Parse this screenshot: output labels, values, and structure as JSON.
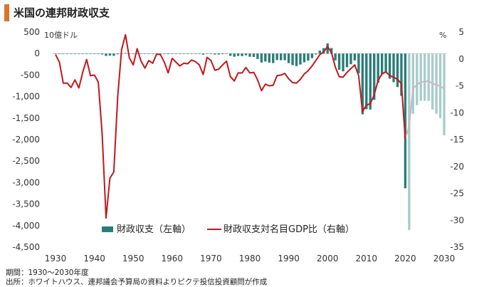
{
  "title": "米国の連邦財政収支",
  "footnote_period": "期間：1930～2030年度",
  "footnote_source": "出所：ホワイトハウス、連邦議会予算局の資料よりピクテ投信投資顧問が作成",
  "chart_data": {
    "type": "bar+line",
    "left_axis": {
      "unit": "10億ドル",
      "ylim": [
        -4500,
        500
      ],
      "ticks": [
        "500",
        "0",
        "-500",
        "-1,000",
        "-1,500",
        "-2,000",
        "-2,500",
        "-3,000",
        "-3,500",
        "-4,000",
        "-4,500"
      ]
    },
    "right_axis": {
      "unit": "%",
      "ylim": [
        -35,
        5
      ],
      "ticks": [
        "5",
        "0",
        "-5",
        "-10",
        "-15",
        "-20",
        "-25",
        "-30",
        "-35"
      ]
    },
    "x_axis": {
      "ticks": [
        "1930",
        "1940",
        "1950",
        "1960",
        "1970",
        "1980",
        "1990",
        "2000",
        "2010",
        "2020",
        "2030"
      ]
    },
    "legend": [
      {
        "name": "財政収支（左軸）",
        "color": "#2a7d78"
      },
      {
        "name": "財政収支対名目GDP比（右軸）",
        "color": "#c0181d"
      }
    ],
    "colors": {
      "actual": "#2a7d78",
      "forecast": "#a9cccb",
      "ratio": "#c0181d",
      "ratio_forecast": "#c8b8c0"
    },
    "balance": {
      "x": [
        1930,
        1931,
        1932,
        1933,
        1934,
        1935,
        1936,
        1937,
        1938,
        1939,
        1940,
        1941,
        1942,
        1943,
        1944,
        1945,
        1946,
        1947,
        1948,
        1949,
        1950,
        1951,
        1952,
        1953,
        1954,
        1955,
        1956,
        1957,
        1958,
        1959,
        1960,
        1961,
        1962,
        1963,
        1964,
        1965,
        1966,
        1967,
        1968,
        1969,
        1970,
        1971,
        1972,
        1973,
        1974,
        1975,
        1976,
        1977,
        1978,
        1979,
        1980,
        1981,
        1982,
        1983,
        1984,
        1985,
        1986,
        1987,
        1988,
        1989,
        1990,
        1991,
        1992,
        1993,
        1994,
        1995,
        1996,
        1997,
        1998,
        1999,
        2000,
        2001,
        2002,
        2003,
        2004,
        2005,
        2006,
        2007,
        2008,
        2009,
        2010,
        2011,
        2012,
        2013,
        2014,
        2015,
        2016,
        2017,
        2018,
        2019,
        2020,
        2021,
        2022,
        2023,
        2024,
        2025,
        2026,
        2027,
        2028,
        2029,
        2030
      ],
      "values": [
        1,
        -3,
        -3,
        -3,
        -4,
        -3,
        -4,
        -3,
        0,
        -3,
        -3,
        -5,
        -21,
        -55,
        -48,
        -53,
        -16,
        4,
        12,
        1,
        -3,
        6,
        -2,
        -7,
        -1,
        -3,
        4,
        3,
        -3,
        -13,
        0,
        -3,
        -7,
        -5,
        -6,
        -1,
        -4,
        -9,
        -25,
        3,
        -3,
        -23,
        -23,
        -15,
        -6,
        -53,
        -74,
        -54,
        -59,
        -41,
        -74,
        -79,
        -128,
        -208,
        -185,
        -212,
        -221,
        -150,
        -155,
        -153,
        -221,
        -269,
        -290,
        -255,
        -203,
        -164,
        -107,
        -22,
        69,
        126,
        236,
        128,
        -158,
        -378,
        -413,
        -318,
        -248,
        -161,
        -459,
        -1413,
        -1294,
        -1300,
        -1077,
        -680,
        -485,
        -442,
        -585,
        -665,
        -779,
        -984,
        -3132,
        -4100,
        -1400,
        -1200,
        -1100,
        -1100,
        -1100,
        -1300,
        -1400,
        -1500,
        -1900
      ],
      "forecast_from": 2021
    },
    "ratio": {
      "x": [
        1930,
        1931,
        1932,
        1933,
        1934,
        1935,
        1936,
        1937,
        1938,
        1939,
        1940,
        1941,
        1942,
        1943,
        1944,
        1945,
        1946,
        1947,
        1948,
        1949,
        1950,
        1951,
        1952,
        1953,
        1954,
        1955,
        1956,
        1957,
        1958,
        1959,
        1960,
        1961,
        1962,
        1963,
        1964,
        1965,
        1966,
        1967,
        1968,
        1969,
        1970,
        1971,
        1972,
        1973,
        1974,
        1975,
        1976,
        1977,
        1978,
        1979,
        1980,
        1981,
        1982,
        1983,
        1984,
        1985,
        1986,
        1987,
        1988,
        1989,
        1990,
        1991,
        1992,
        1993,
        1994,
        1995,
        1996,
        1997,
        1998,
        1999,
        2000,
        2001,
        2002,
        2003,
        2004,
        2005,
        2006,
        2007,
        2008,
        2009,
        2010,
        2011,
        2012,
        2013,
        2014,
        2015,
        2016,
        2017,
        2018,
        2019,
        2020,
        2021,
        2022,
        2023,
        2024,
        2025,
        2026,
        2027,
        2028,
        2029,
        2030
      ],
      "values": [
        0.8,
        -0.6,
        -4.5,
        -4.5,
        -5.3,
        -3.9,
        -5.4,
        -2.5,
        -0.1,
        -3.1,
        -3.0,
        -4.3,
        -13.9,
        -29.6,
        -22.2,
        -21.0,
        -7.0,
        1.7,
        4.5,
        0.2,
        -1.1,
        1.9,
        -0.4,
        -1.7,
        -0.3,
        -0.8,
        0.9,
        0.8,
        -0.6,
        -2.6,
        0.1,
        -0.6,
        -1.3,
        -0.8,
        -0.9,
        -0.2,
        -0.5,
        -1.1,
        -2.9,
        0.3,
        -0.3,
        -2.1,
        -1.9,
        -1.1,
        -0.4,
        -3.3,
        -4.1,
        -2.6,
        -2.6,
        -1.6,
        -2.6,
        -2.5,
        -3.9,
        -5.9,
        -4.7,
        -5.0,
        -4.9,
        -3.1,
        -3.0,
        -2.7,
        -3.7,
        -4.4,
        -4.5,
        -3.8,
        -2.8,
        -2.2,
        -1.3,
        -0.3,
        0.8,
        1.3,
        2.3,
        1.2,
        -1.5,
        -3.3,
        -3.4,
        -2.5,
        -1.8,
        -1.1,
        -3.1,
        -9.8,
        -8.6,
        -8.3,
        -6.7,
        -4.0,
        -2.8,
        -2.4,
        -3.1,
        -3.4,
        -3.8,
        -4.6,
        -14.9,
        -12.4,
        -5.5,
        -4.8,
        -4.3,
        -4.2,
        -4.1,
        -4.6,
        -4.8,
        -5.1,
        -5.5
      ],
      "forecast_from": 2021
    }
  }
}
